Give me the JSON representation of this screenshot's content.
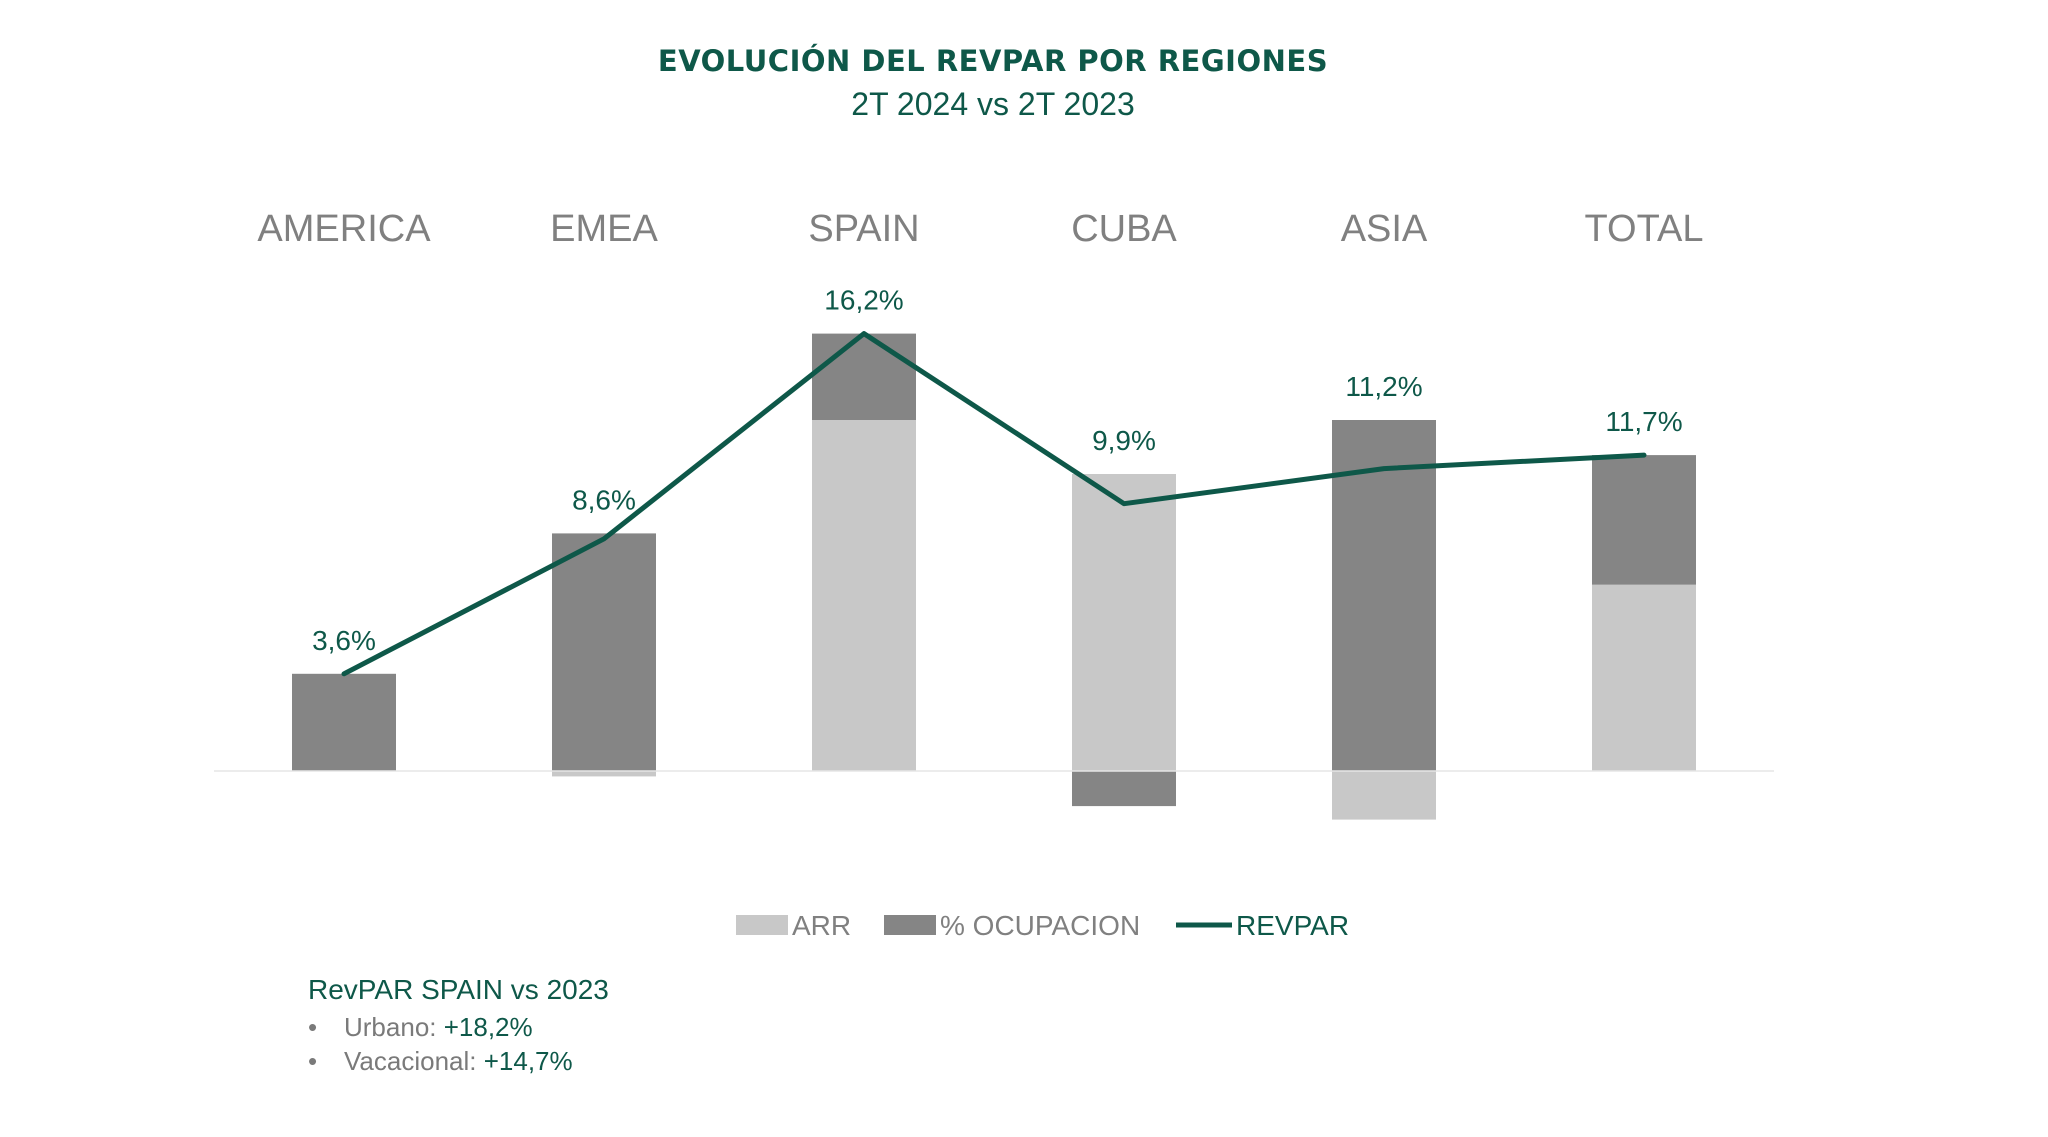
{
  "title": "EVOLUCIÓN DEL REVPAR POR REGIONES",
  "subtitle": "2T 2024 vs 2T 2023",
  "chart_data": {
    "type": "bar",
    "stacked": true,
    "categories": [
      "AMERICA",
      "EMEA",
      "SPAIN",
      "CUBA",
      "ASIA",
      "TOTAL"
    ],
    "series": [
      {
        "name": "ARR",
        "kind": "bar",
        "color": "#c8c8c8",
        "values": [
          0.0,
          -0.2,
          13.0,
          11.0,
          -1.8,
          6.9
        ]
      },
      {
        "name": "% OCUPACION",
        "kind": "bar",
        "color": "#858585",
        "values": [
          3.6,
          8.8,
          3.2,
          -1.3,
          13.0,
          4.8
        ]
      },
      {
        "name": "REVPAR",
        "kind": "line",
        "color": "#0e5849",
        "values": [
          3.6,
          8.6,
          16.2,
          9.9,
          11.2,
          11.7
        ]
      }
    ],
    "data_labels": [
      "3,6%",
      "8,6%",
      "16,2%",
      "9,9%",
      "11,2%",
      "11,7%"
    ],
    "ylim": [
      -3.2,
      18
    ],
    "grid": false,
    "legend": "bottom"
  },
  "notes": {
    "heading": "RevPAR SPAIN vs 2023",
    "items": [
      {
        "bullet": "•",
        "label": "Urbano:",
        "value": "+18,2%"
      },
      {
        "bullet": "•",
        "label": "Vacacional:",
        "value": "+14,7%"
      }
    ]
  }
}
